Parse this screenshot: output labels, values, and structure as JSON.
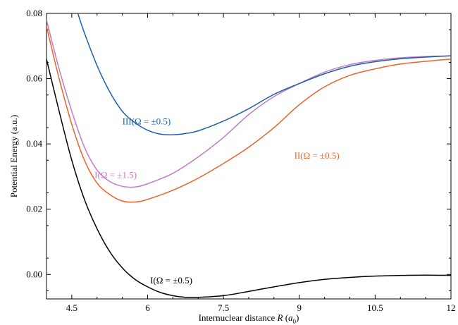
{
  "chart_data": {
    "type": "line",
    "title": "",
    "xlabel": "Internuclear distance R (a0)",
    "xlabel_parts": {
      "prefix": "Internuclear distance ",
      "var": "R",
      "open": " (",
      "unit": "a",
      "sub": "0",
      "close": ")"
    },
    "ylabel": "Potential Energy (a.u.)",
    "xlim": [
      4.0,
      12.0
    ],
    "ylim": [
      -0.0075,
      0.08
    ],
    "xticks": [
      4.5,
      6,
      7.5,
      9,
      10.5,
      12
    ],
    "xtick_labels": [
      "4.5",
      "6",
      "7.5",
      "9",
      "10.5",
      "12"
    ],
    "yticks": [
      0.0,
      0.02,
      0.04,
      0.06,
      0.08
    ],
    "ytick_labels": [
      "0.00",
      "0.02",
      "0.04",
      "0.06",
      "0.08"
    ],
    "grid": false,
    "legend": "none",
    "series": [
      {
        "name": "I(Ω = ±0.5)",
        "color": "#000000",
        "x": [
          4.0,
          4.25,
          4.5,
          4.75,
          5.0,
          5.25,
          5.5,
          5.75,
          6.0,
          6.25,
          6.5,
          6.75,
          7.0,
          7.5,
          8.0,
          8.5,
          9.0,
          9.5,
          10.0,
          10.5,
          11.0,
          11.5,
          12.0
        ],
        "y": [
          0.066,
          0.05,
          0.035,
          0.023,
          0.014,
          0.007,
          0.002,
          -0.0015,
          -0.0038,
          -0.0055,
          -0.0065,
          -0.007,
          -0.007,
          -0.0065,
          -0.0052,
          -0.0038,
          -0.0025,
          -0.0015,
          -0.0009,
          -0.0005,
          -0.0003,
          -0.0002,
          -0.0003
        ]
      },
      {
        "name": "II(Ω = ±0.5)",
        "color": "#e8642c",
        "x": [
          4.0,
          4.25,
          4.5,
          4.75,
          5.0,
          5.25,
          5.5,
          5.75,
          6.0,
          6.5,
          7.0,
          7.5,
          8.0,
          8.5,
          9.0,
          9.5,
          10.0,
          10.5,
          11.0,
          11.5,
          12.0
        ],
        "y": [
          0.076,
          0.06,
          0.046,
          0.035,
          0.028,
          0.0245,
          0.0225,
          0.0222,
          0.023,
          0.0258,
          0.0295,
          0.034,
          0.039,
          0.045,
          0.052,
          0.0575,
          0.061,
          0.063,
          0.0645,
          0.0653,
          0.066
        ]
      },
      {
        "name": "I(Ω = ±1.5)",
        "color": "#c27bc5",
        "x": [
          4.0,
          4.25,
          4.5,
          4.75,
          5.0,
          5.25,
          5.5,
          5.75,
          6.0,
          6.5,
          7.0,
          7.5,
          8.0,
          8.5,
          9.0,
          9.5,
          10.0,
          10.5,
          11.0,
          11.5,
          12.0
        ],
        "y": [
          0.078,
          0.063,
          0.05,
          0.039,
          0.032,
          0.0285,
          0.027,
          0.0268,
          0.0278,
          0.031,
          0.036,
          0.042,
          0.049,
          0.0545,
          0.0585,
          0.062,
          0.0643,
          0.0656,
          0.0664,
          0.0668,
          0.067
        ]
      },
      {
        "name": "III(Ω = ±0.5)",
        "color": "#1f5fa8",
        "x": [
          4.62,
          4.75,
          5.0,
          5.25,
          5.5,
          5.75,
          6.0,
          6.25,
          6.5,
          6.75,
          7.0,
          7.5,
          8.0,
          8.5,
          9.0,
          9.5,
          10.0,
          10.5,
          11.0,
          11.5,
          12.0
        ],
        "y": [
          0.08,
          0.074,
          0.064,
          0.056,
          0.05,
          0.0465,
          0.0442,
          0.043,
          0.0428,
          0.0432,
          0.044,
          0.047,
          0.0508,
          0.0552,
          0.0585,
          0.0615,
          0.0638,
          0.0652,
          0.0661,
          0.0666,
          0.067
        ]
      }
    ],
    "annotations": [
      {
        "text": "III(Ω = ±0.5)",
        "series": 3,
        "x": 5.5,
        "y": 0.046
      },
      {
        "text": "II(Ω = ±0.5)",
        "series": 1,
        "x": 8.9,
        "y": 0.0355
      },
      {
        "text": "I(Ω = ±1.5)",
        "series": 2,
        "x": 4.95,
        "y": 0.0295
      },
      {
        "text": "I(Ω = ±0.5)",
        "series": 0,
        "x": 6.05,
        "y": -0.0028
      }
    ]
  }
}
